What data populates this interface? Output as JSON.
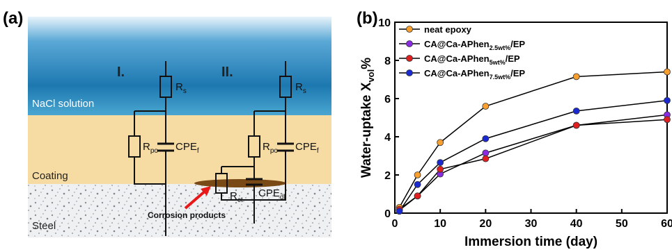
{
  "panel_a": {
    "label": "(a)",
    "circuit_1": "I.",
    "circuit_2": "II.",
    "zones": [
      "NaCl solution",
      "Coating",
      "Steel"
    ],
    "rs": {
      "main": "R",
      "sub": "s"
    },
    "rpo": {
      "main": "R",
      "sub": "po"
    },
    "cpef": {
      "main": "CPE",
      "sub": "f"
    },
    "rct": {
      "main": "R",
      "sub": "ct"
    },
    "cpedl": {
      "main": "CPE",
      "sub": "dl"
    },
    "annotation": "Corrosion products"
  },
  "chart_data": {
    "type": "line",
    "label": "(b)",
    "xlabel": "Immersion time (day)",
    "ylabel": {
      "text": "Water-uptake X",
      "sub": "vol",
      "suffix": "%"
    },
    "x": [
      1,
      5,
      10,
      20,
      40,
      60
    ],
    "line_color": "#000000",
    "series": [
      {
        "name": "neat epoxy",
        "color": "#f7a030",
        "values": [
          0.3,
          2.0,
          3.7,
          5.6,
          7.15,
          7.4
        ]
      },
      {
        "name": "CA@Ca-APhen",
        "name_sub": "2.5wt%",
        "name_suffix": "/EP",
        "color": "#8a2be2",
        "values": [
          0.15,
          0.9,
          2.05,
          3.15,
          4.6,
          5.15
        ]
      },
      {
        "name": "CA@Ca-APhen",
        "name_sub": "5wt%",
        "name_suffix": "/EP",
        "color": "#e02020",
        "values": [
          0.2,
          0.9,
          2.3,
          2.85,
          4.6,
          4.9
        ]
      },
      {
        "name": "CA@Ca-APhen",
        "name_sub": "7.5wt%",
        "name_suffix": "/EP",
        "color": "#1a2ad0",
        "values": [
          0.1,
          1.5,
          2.65,
          3.9,
          5.35,
          5.9
        ]
      }
    ],
    "xlim": [
      0,
      60
    ],
    "xticks": [
      0,
      10,
      20,
      30,
      40,
      50,
      60
    ],
    "ylim": [
      0,
      10
    ],
    "yticks": [
      0,
      2,
      4,
      6,
      8,
      10
    ],
    "legend": "upper left"
  }
}
